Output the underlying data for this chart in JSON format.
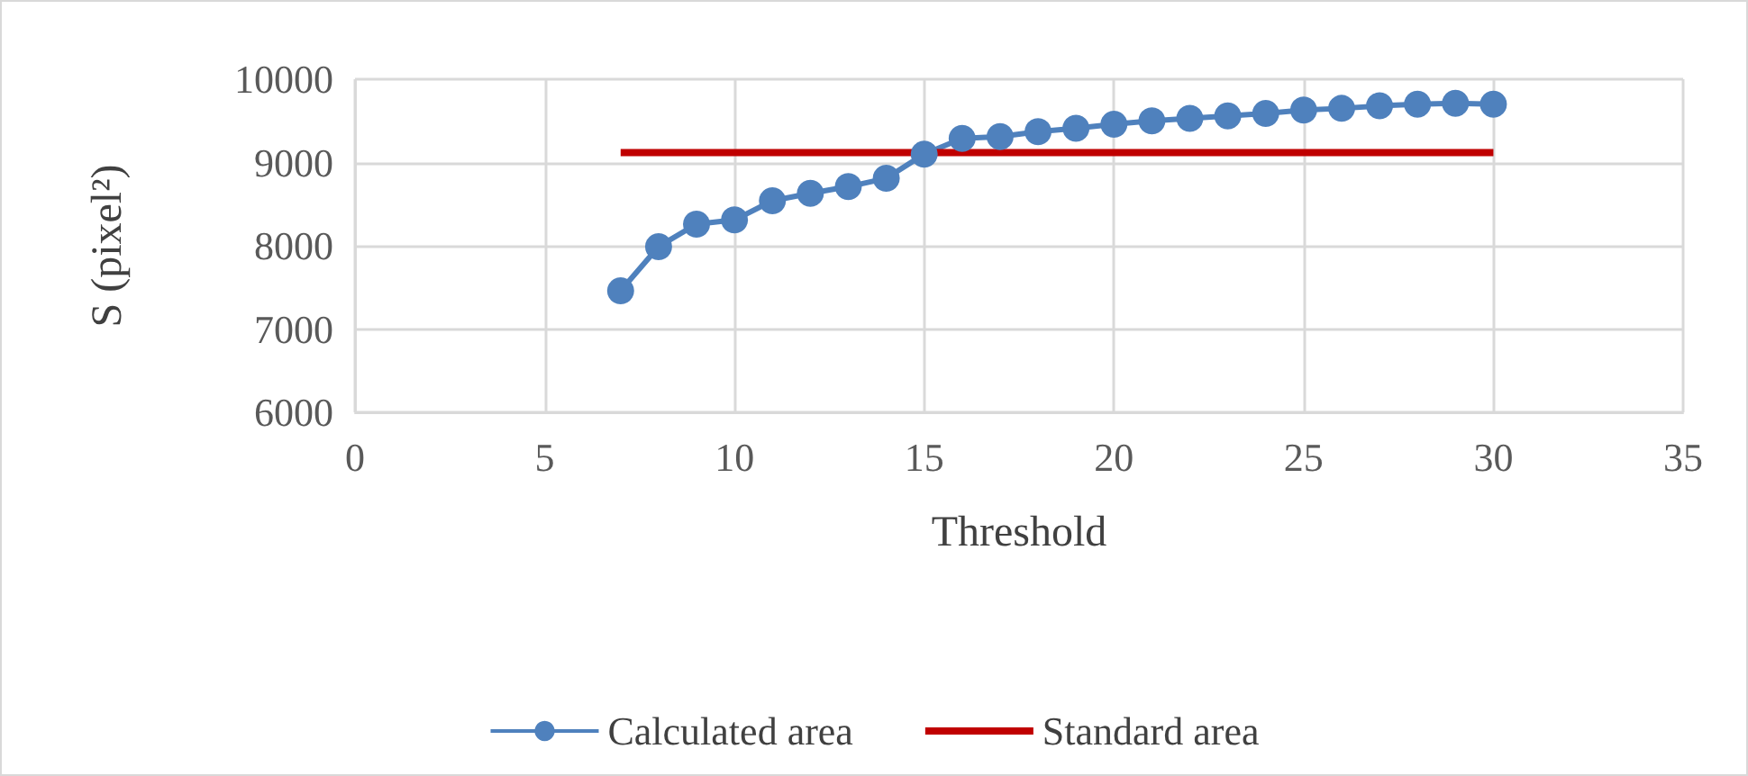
{
  "chart_data": {
    "type": "line",
    "xlabel": "Threshold",
    "ylabel": "S (pixel²)",
    "xlim": [
      0,
      35
    ],
    "xticks": [
      0,
      5,
      10,
      15,
      20,
      25,
      30,
      35
    ],
    "ylim": [
      6000,
      10000
    ],
    "yticks": [
      6000,
      7000,
      8000,
      9000,
      10000
    ],
    "grid": true,
    "legend": "bottom",
    "x": [
      7,
      8,
      9,
      10,
      11,
      12,
      13,
      14,
      15,
      16,
      17,
      18,
      19,
      20,
      21,
      22,
      23,
      24,
      25,
      26,
      27,
      28,
      29,
      30
    ],
    "series": [
      {
        "name": "Calculated area",
        "color": "#4f81bd",
        "marker": "circle",
        "values": [
          7460,
          7990,
          8260,
          8310,
          8540,
          8630,
          8710,
          8810,
          9100,
          9290,
          9310,
          9370,
          9410,
          9460,
          9500,
          9530,
          9560,
          9590,
          9630,
          9650,
          9680,
          9700,
          9710,
          9700
        ]
      },
      {
        "name": "Standard area",
        "color": "#c00000",
        "marker": "none",
        "x": [
          7,
          30
        ],
        "values": [
          9120,
          9120
        ]
      }
    ]
  }
}
